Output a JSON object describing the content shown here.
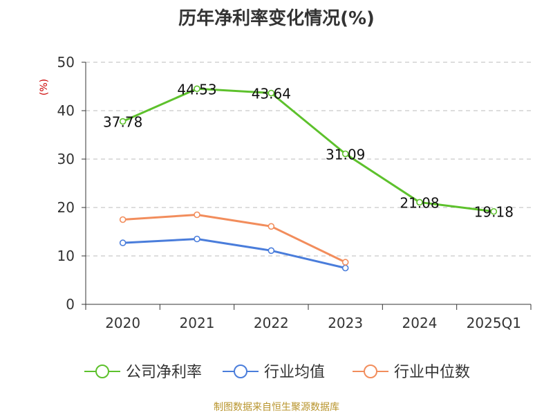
{
  "title": "历年净利率变化情况(%)",
  "source": "制图数据来自恒生聚源数据库",
  "colors": {
    "series_company": "#5dc12c",
    "series_avg": "#4a7ddb",
    "series_median": "#f28d5c",
    "ylabel": "#cc0000",
    "source": "#b8942c",
    "grid": "#bbbbbb",
    "axis": "#333333"
  },
  "chart_data": {
    "type": "line",
    "title": "历年净利率变化情况(%)",
    "ylabel": "(%)",
    "xlabel": "",
    "categories": [
      "2020",
      "2021",
      "2022",
      "2023",
      "2024",
      "2025Q1"
    ],
    "ylim": [
      0,
      50
    ],
    "yticks": [
      0,
      10,
      20,
      30,
      40,
      50
    ],
    "grid": true,
    "legend_position": "bottom",
    "series": [
      {
        "name": "公司净利率",
        "color": "#5dc12c",
        "values": [
          37.78,
          44.53,
          43.64,
          31.09,
          21.08,
          19.18
        ],
        "show_labels": true
      },
      {
        "name": "行业均值",
        "color": "#4a7ddb",
        "values": [
          12.7,
          13.5,
          11.1,
          7.5,
          null,
          null
        ],
        "show_labels": false
      },
      {
        "name": "行业中位数",
        "color": "#f28d5c",
        "values": [
          17.5,
          18.5,
          16.1,
          8.7,
          null,
          null
        ],
        "show_labels": false
      }
    ]
  }
}
